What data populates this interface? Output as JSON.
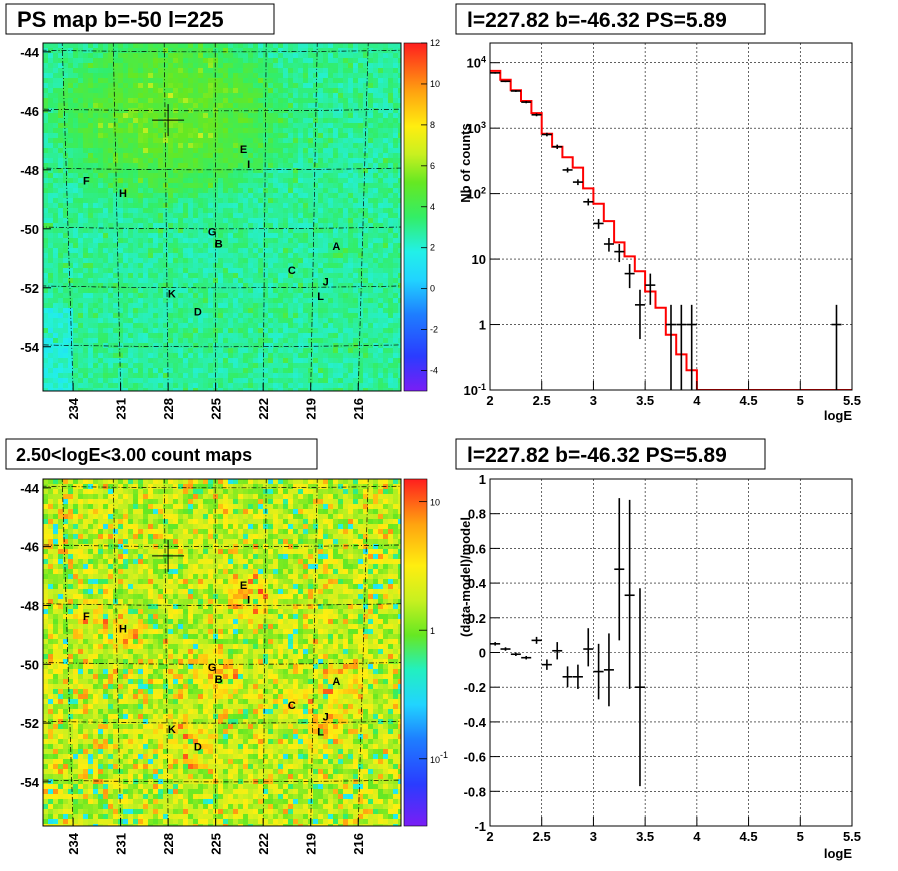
{
  "chart_data": [
    {
      "type": "heatmap",
      "panel": "ps-map",
      "title": "PS map b=-50 l=225",
      "x_tick_labels": [
        "234",
        "231",
        "228",
        "225",
        "222",
        "219",
        "216"
      ],
      "y_tick_labels": [
        "-44",
        "-46",
        "-48",
        "-50",
        "-52",
        "-54"
      ],
      "colorbar": {
        "scale": "linear",
        "range": [
          -5,
          12
        ],
        "tick_labels": [
          "12",
          "10",
          "8",
          "6",
          "4",
          "2",
          "0",
          "-2",
          "-4"
        ]
      },
      "sources": [
        {
          "label": "A",
          "l": 217.6,
          "b": -50.6
        },
        {
          "label": "B",
          "l": 224.8,
          "b": -50.5
        },
        {
          "label": "C",
          "l": 220.3,
          "b": -51.4
        },
        {
          "label": "D",
          "l": 226.1,
          "b": -52.8
        },
        {
          "label": "E",
          "l": 223.3,
          "b": -47.3
        },
        {
          "label": "F",
          "l": 232.8,
          "b": -48.4
        },
        {
          "label": "G",
          "l": 225.2,
          "b": -50.1
        },
        {
          "label": "H",
          "l": 230.6,
          "b": -48.8
        },
        {
          "label": "I",
          "l": 223.0,
          "b": -47.8
        },
        {
          "label": "J",
          "l": 218.2,
          "b": -51.8
        },
        {
          "label": "K",
          "l": 227.7,
          "b": -52.2
        },
        {
          "label": "L",
          "l": 218.5,
          "b": -52.3
        }
      ],
      "marker": {
        "l": 227.82,
        "b": -46.32
      }
    },
    {
      "type": "line",
      "panel": "spectrum",
      "title": "l=227.82 b=-46.32 PS=5.89",
      "xlabel": "logE",
      "ylabel": "Nb of counts",
      "xlim": [
        2,
        5.5
      ],
      "ylim": [
        0.1,
        20000
      ],
      "yscale": "log",
      "grid": true,
      "x_tick_labels": [
        "2",
        "2.5",
        "3",
        "3.5",
        "4",
        "4.5",
        "5",
        "5.5"
      ],
      "y_tick_labels": [
        "10^-1",
        "1",
        "10",
        "10^2",
        "10^3",
        "10^4"
      ],
      "model_step": {
        "color": "#ff0000",
        "edges": [
          2.0,
          2.1,
          2.2,
          2.3,
          2.4,
          2.5,
          2.6,
          2.7,
          2.8,
          2.9,
          3.0,
          3.1,
          3.2,
          3.3,
          3.4,
          3.5,
          3.6,
          3.7,
          3.8,
          3.9,
          4.0,
          5.5
        ],
        "values": [
          7500,
          5500,
          3800,
          2600,
          1700,
          820,
          520,
          360,
          250,
          120,
          70,
          38,
          18,
          11,
          6.5,
          3.2,
          1.8,
          0.7,
          0.35,
          0.2,
          0.1
        ]
      },
      "data_points": [
        {
          "x": 2.05,
          "y": 7000,
          "ylo": 6800,
          "yhi": 7200
        },
        {
          "x": 2.15,
          "y": 5200,
          "ylo": 5050,
          "yhi": 5350
        },
        {
          "x": 2.25,
          "y": 3700,
          "ylo": 3580,
          "yhi": 3820
        },
        {
          "x": 2.35,
          "y": 2500,
          "ylo": 2400,
          "yhi": 2600
        },
        {
          "x": 2.45,
          "y": 1600,
          "ylo": 1520,
          "yhi": 1680
        },
        {
          "x": 2.55,
          "y": 800,
          "ylo": 750,
          "yhi": 850
        },
        {
          "x": 2.65,
          "y": 520,
          "ylo": 480,
          "yhi": 560
        },
        {
          "x": 2.75,
          "y": 230,
          "ylo": 210,
          "yhi": 250
        },
        {
          "x": 2.85,
          "y": 150,
          "ylo": 135,
          "yhi": 165
        },
        {
          "x": 2.95,
          "y": 75,
          "ylo": 66,
          "yhi": 84
        },
        {
          "x": 3.05,
          "y": 35,
          "ylo": 29,
          "yhi": 41
        },
        {
          "x": 3.15,
          "y": 17,
          "ylo": 13,
          "yhi": 21
        },
        {
          "x": 3.25,
          "y": 13,
          "ylo": 9,
          "yhi": 17
        },
        {
          "x": 3.35,
          "y": 6,
          "ylo": 3.6,
          "yhi": 8.4
        },
        {
          "x": 3.45,
          "y": 2,
          "ylo": 0.6,
          "yhi": 3.4
        },
        {
          "x": 3.55,
          "y": 4,
          "ylo": 2,
          "yhi": 6
        },
        {
          "x": 3.75,
          "y": 1,
          "ylo": 0.1,
          "yhi": 2
        },
        {
          "x": 3.85,
          "y": 1,
          "ylo": 0.1,
          "yhi": 2
        },
        {
          "x": 3.95,
          "y": 1,
          "ylo": 0.1,
          "yhi": 2
        },
        {
          "x": 5.35,
          "y": 1,
          "ylo": 0.1,
          "yhi": 2
        }
      ]
    },
    {
      "type": "heatmap",
      "panel": "count-map",
      "title": "2.50<logE<3.00 count maps",
      "x_tick_labels": [
        "234",
        "231",
        "228",
        "225",
        "222",
        "219",
        "216"
      ],
      "y_tick_labels": [
        "-44",
        "-46",
        "-48",
        "-50",
        "-52",
        "-54"
      ],
      "colorbar": {
        "scale": "log",
        "range": [
          0.03,
          15
        ],
        "tick_labels": [
          "10",
          "1",
          "10^-1"
        ]
      },
      "sources": [
        {
          "label": "A",
          "l": 217.6,
          "b": -50.6
        },
        {
          "label": "B",
          "l": 224.8,
          "b": -50.5
        },
        {
          "label": "C",
          "l": 220.3,
          "b": -51.4
        },
        {
          "label": "D",
          "l": 226.1,
          "b": -52.8
        },
        {
          "label": "E",
          "l": 223.3,
          "b": -47.3
        },
        {
          "label": "F",
          "l": 232.8,
          "b": -48.4
        },
        {
          "label": "G",
          "l": 225.2,
          "b": -50.1
        },
        {
          "label": "H",
          "l": 230.6,
          "b": -48.8
        },
        {
          "label": "I",
          "l": 223.0,
          "b": -47.8
        },
        {
          "label": "J",
          "l": 218.2,
          "b": -51.8
        },
        {
          "label": "K",
          "l": 227.7,
          "b": -52.2
        },
        {
          "label": "L",
          "l": 218.5,
          "b": -52.3
        }
      ],
      "marker": {
        "l": 227.82,
        "b": -46.32
      }
    },
    {
      "type": "scatter",
      "panel": "residuals",
      "title": "l=227.82 b=-46.32 PS=5.89",
      "xlabel": "logE",
      "ylabel": "(data-model)/model",
      "xlim": [
        2,
        5.5
      ],
      "ylim": [
        -1,
        1
      ],
      "grid": true,
      "x_tick_labels": [
        "2",
        "2.5",
        "3",
        "3.5",
        "4",
        "4.5",
        "5",
        "5.5"
      ],
      "y_tick_labels": [
        "1",
        "0.8",
        "0.6",
        "0.4",
        "0.2",
        "0",
        "-0.2",
        "-0.4",
        "-0.6",
        "-0.8",
        "-1"
      ],
      "data_points": [
        {
          "x": 2.05,
          "y": 0.05,
          "ylo": 0.04,
          "yhi": 0.06
        },
        {
          "x": 2.15,
          "y": 0.02,
          "ylo": 0.01,
          "yhi": 0.03
        },
        {
          "x": 2.25,
          "y": -0.01,
          "ylo": -0.02,
          "yhi": 0.0
        },
        {
          "x": 2.35,
          "y": -0.03,
          "ylo": -0.04,
          "yhi": -0.02
        },
        {
          "x": 2.45,
          "y": 0.07,
          "ylo": 0.05,
          "yhi": 0.09
        },
        {
          "x": 2.55,
          "y": -0.07,
          "ylo": -0.1,
          "yhi": -0.04
        },
        {
          "x": 2.65,
          "y": 0.01,
          "ylo": -0.04,
          "yhi": 0.06
        },
        {
          "x": 2.75,
          "y": -0.14,
          "ylo": -0.2,
          "yhi": -0.08
        },
        {
          "x": 2.85,
          "y": -0.14,
          "ylo": -0.21,
          "yhi": -0.07
        },
        {
          "x": 2.95,
          "y": 0.02,
          "ylo": -0.08,
          "yhi": 0.14
        },
        {
          "x": 3.05,
          "y": -0.11,
          "ylo": -0.27,
          "yhi": 0.05
        },
        {
          "x": 3.15,
          "y": -0.1,
          "ylo": -0.31,
          "yhi": 0.11
        },
        {
          "x": 3.25,
          "y": 0.48,
          "ylo": 0.07,
          "yhi": 0.89
        },
        {
          "x": 3.35,
          "y": 0.33,
          "ylo": -0.21,
          "yhi": 0.88
        },
        {
          "x": 3.45,
          "y": -0.2,
          "ylo": -0.77,
          "yhi": 0.37
        }
      ]
    }
  ]
}
